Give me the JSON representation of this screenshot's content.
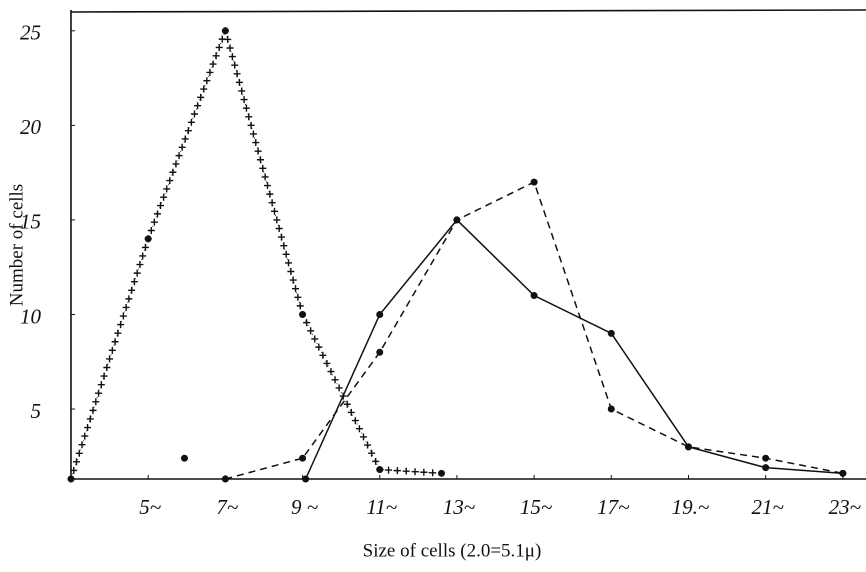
{
  "chart_data": {
    "type": "line",
    "x_label": "Size of cells (2.0=5.1μ)",
    "y_label": "Number of cells",
    "xlim": [
      3,
      23.6
    ],
    "ylim": [
      1.3,
      26.1
    ],
    "xticks": [
      {
        "value": 5,
        "label": "5~"
      },
      {
        "value": 7,
        "label": "7~"
      },
      {
        "value": 9,
        "label": "9 ~"
      },
      {
        "value": 11,
        "label": "11~"
      },
      {
        "value": 13,
        "label": "13~"
      },
      {
        "value": 15,
        "label": "15~"
      },
      {
        "value": 17,
        "label": "17~"
      },
      {
        "value": 19,
        "label": "19.~"
      },
      {
        "value": 21,
        "label": "21~"
      },
      {
        "value": 23,
        "label": "23~"
      }
    ],
    "yticks": [
      5,
      10,
      15,
      20,
      25
    ],
    "grid": false,
    "series": [
      {
        "style": "crosses",
        "color": "#111111",
        "x": [
          3,
          5,
          7,
          9,
          11,
          12.6
        ],
        "values": [
          1.3,
          14,
          25,
          10,
          1.8,
          1.6
        ]
      },
      {
        "style": "solid",
        "color": "#111111",
        "x": [
          9.08,
          11,
          13,
          15,
          17,
          19,
          21,
          23
        ],
        "values": [
          1.3,
          10,
          15,
          11,
          9,
          3,
          1.9,
          1.6
        ]
      },
      {
        "style": "dashed",
        "color": "#111111",
        "x": [
          7,
          9,
          11,
          13,
          15,
          17,
          19,
          21,
          23
        ],
        "values": [
          1.3,
          2.4,
          8,
          15,
          17,
          5,
          3,
          2.4,
          1.6
        ]
      },
      {
        "style": "point",
        "color": "#111111",
        "x": [
          5.94
        ],
        "values": [
          2.4
        ]
      }
    ]
  }
}
